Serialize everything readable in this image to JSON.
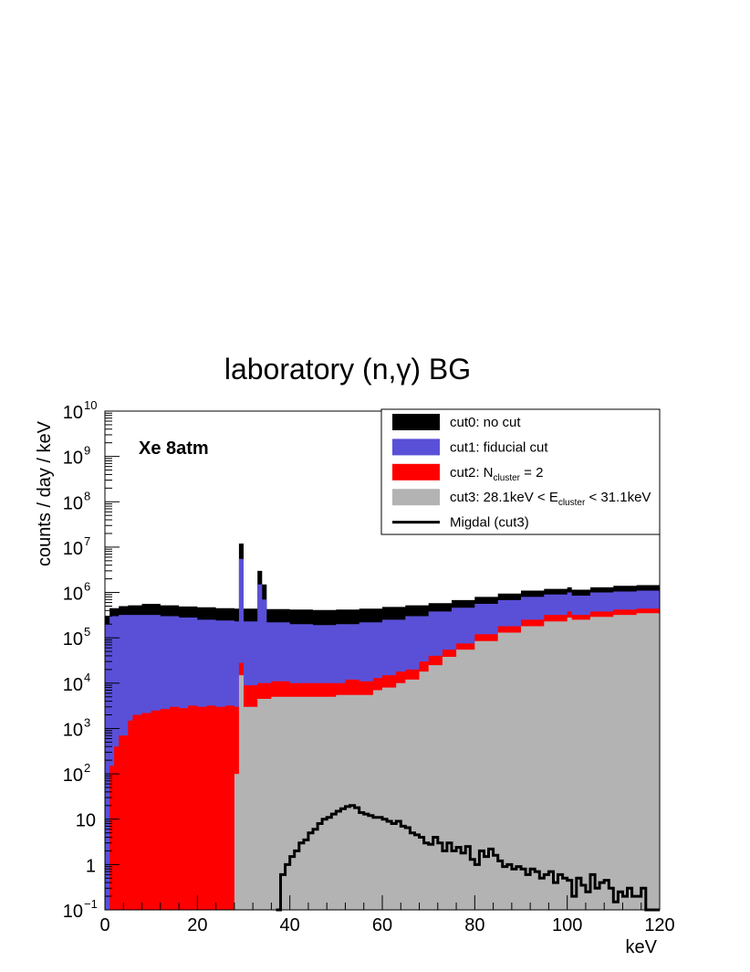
{
  "chart_data": {
    "type": "histogram",
    "title": "laboratory (n,γ) BG",
    "xlabel": "keV",
    "ylabel": "counts / day / keV",
    "xlim": [
      0,
      120
    ],
    "ylim": [
      0.1,
      10000000000.0
    ],
    "y_scale": "log",
    "grid": false,
    "x_ticks": [
      "0",
      "20",
      "40",
      "60",
      "80",
      "100",
      "120"
    ],
    "y_ticks": [
      {
        "value": 0.1,
        "base": "10",
        "exp": "−1"
      },
      {
        "value": 1,
        "base": "1",
        "exp": ""
      },
      {
        "value": 10,
        "base": "10",
        "exp": ""
      },
      {
        "value": 100,
        "base": "10",
        "exp": "2"
      },
      {
        "value": 1000,
        "base": "10",
        "exp": "3"
      },
      {
        "value": 10000,
        "base": "10",
        "exp": "4"
      },
      {
        "value": 100000,
        "base": "10",
        "exp": "5"
      },
      {
        "value": 1000000,
        "base": "10",
        "exp": "6"
      },
      {
        "value": 10000000,
        "base": "10",
        "exp": "7"
      },
      {
        "value": 100000000,
        "base": "10",
        "exp": "8"
      },
      {
        "value": 1000000000,
        "base": "10",
        "exp": "9"
      },
      {
        "value": 10000000000,
        "base": "10",
        "exp": "10"
      }
    ],
    "annotation": "Xe 8atm",
    "legend_position": "top-right",
    "legend": [
      {
        "key": "cut0",
        "label": "cut0: no cut",
        "color": "#000000",
        "style": "fill"
      },
      {
        "key": "cut1",
        "label": "cut1: fiducial cut",
        "color": "#5a50d8",
        "style": "fill"
      },
      {
        "key": "cut2",
        "label_main": "cut2: N",
        "label_sub": "cluster",
        "label_tail": " = 2",
        "color": "#ff0000",
        "style": "fill"
      },
      {
        "key": "cut3",
        "label_main": "cut3: 28.1keV < E",
        "label_sub": "cluster",
        "label_tail": " < 31.1keV",
        "color": "#b3b3b3",
        "style": "fill"
      },
      {
        "key": "migdal",
        "label": "Migdal (cut3)",
        "color": "#000000",
        "style": "line"
      }
    ],
    "series": [
      {
        "name": "cut0: no cut",
        "color": "#000000",
        "points": [
          [
            0,
            300000
          ],
          [
            1,
            450000
          ],
          [
            3,
            500000
          ],
          [
            5,
            520000
          ],
          [
            8,
            560000
          ],
          [
            12,
            520000
          ],
          [
            16,
            490000
          ],
          [
            20,
            470000
          ],
          [
            24,
            450000
          ],
          [
            28,
            440000
          ],
          [
            29,
            12000000
          ],
          [
            30,
            440000
          ],
          [
            33,
            3000000
          ],
          [
            34,
            1500000
          ],
          [
            35,
            430000
          ],
          [
            40,
            420000
          ],
          [
            45,
            410000
          ],
          [
            50,
            420000
          ],
          [
            55,
            440000
          ],
          [
            60,
            480000
          ],
          [
            65,
            520000
          ],
          [
            70,
            580000
          ],
          [
            75,
            680000
          ],
          [
            80,
            800000
          ],
          [
            85,
            950000
          ],
          [
            90,
            1100000
          ],
          [
            95,
            1200000
          ],
          [
            100,
            1300000
          ],
          [
            101,
            1150000
          ],
          [
            105,
            1300000
          ],
          [
            110,
            1400000
          ],
          [
            115,
            1450000
          ],
          [
            120,
            1450000
          ]
        ]
      },
      {
        "name": "cut1: fiducial cut",
        "color": "#5a50d8",
        "points": [
          [
            0,
            200000
          ],
          [
            1,
            300000
          ],
          [
            3,
            320000
          ],
          [
            5,
            320000
          ],
          [
            8,
            320000
          ],
          [
            12,
            300000
          ],
          [
            16,
            280000
          ],
          [
            20,
            250000
          ],
          [
            24,
            240000
          ],
          [
            28,
            230000
          ],
          [
            29,
            5500000
          ],
          [
            30,
            230000
          ],
          [
            33,
            1500000
          ],
          [
            34,
            700000
          ],
          [
            35,
            220000
          ],
          [
            40,
            200000
          ],
          [
            45,
            190000
          ],
          [
            50,
            200000
          ],
          [
            55,
            220000
          ],
          [
            60,
            250000
          ],
          [
            65,
            300000
          ],
          [
            70,
            380000
          ],
          [
            75,
            460000
          ],
          [
            80,
            560000
          ],
          [
            85,
            680000
          ],
          [
            90,
            800000
          ],
          [
            95,
            900000
          ],
          [
            100,
            1000000
          ],
          [
            101,
            850000
          ],
          [
            105,
            1000000
          ],
          [
            110,
            1050000
          ],
          [
            115,
            1100000
          ],
          [
            120,
            1100000
          ]
        ]
      },
      {
        "name": "cut2: N = 2",
        "color": "#ff0000",
        "points": [
          [
            1,
            150
          ],
          [
            2,
            400
          ],
          [
            3,
            700
          ],
          [
            5,
            1500
          ],
          [
            6,
            2000
          ],
          [
            8,
            2200
          ],
          [
            10,
            2500
          ],
          [
            12,
            2700
          ],
          [
            14,
            3000
          ],
          [
            16,
            2800
          ],
          [
            18,
            3200
          ],
          [
            20,
            3000
          ],
          [
            22,
            3200
          ],
          [
            24,
            3000
          ],
          [
            26,
            3200
          ],
          [
            28,
            3000
          ],
          [
            29,
            28000
          ],
          [
            30,
            9000
          ],
          [
            33,
            10000
          ],
          [
            36,
            11000
          ],
          [
            40,
            10000
          ],
          [
            45,
            10000
          ],
          [
            50,
            10000
          ],
          [
            52,
            12000
          ],
          [
            55,
            11000
          ],
          [
            58,
            13000
          ],
          [
            60,
            15000
          ],
          [
            63,
            18000
          ],
          [
            65,
            20000
          ],
          [
            68,
            30000
          ],
          [
            70,
            40000
          ],
          [
            73,
            55000
          ],
          [
            76,
            75000
          ],
          [
            80,
            120000
          ],
          [
            85,
            180000
          ],
          [
            90,
            250000
          ],
          [
            95,
            320000
          ],
          [
            100,
            380000
          ],
          [
            101,
            320000
          ],
          [
            105,
            380000
          ],
          [
            110,
            420000
          ],
          [
            115,
            440000
          ],
          [
            120,
            450000
          ]
        ]
      },
      {
        "name": "cut3: 28.1keV < E < 31.1keV",
        "color": "#b3b3b3",
        "points": [
          [
            28,
            100
          ],
          [
            29,
            15000
          ],
          [
            30,
            3000
          ],
          [
            33,
            4500
          ],
          [
            36,
            5000
          ],
          [
            40,
            5000
          ],
          [
            45,
            5000
          ],
          [
            50,
            5500
          ],
          [
            55,
            5500
          ],
          [
            58,
            7000
          ],
          [
            60,
            8000
          ],
          [
            63,
            10000
          ],
          [
            65,
            12000
          ],
          [
            68,
            18000
          ],
          [
            70,
            25000
          ],
          [
            73,
            38000
          ],
          [
            76,
            55000
          ],
          [
            80,
            85000
          ],
          [
            85,
            130000
          ],
          [
            90,
            180000
          ],
          [
            95,
            230000
          ],
          [
            100,
            280000
          ],
          [
            101,
            250000
          ],
          [
            105,
            290000
          ],
          [
            110,
            320000
          ],
          [
            115,
            350000
          ],
          [
            120,
            360000
          ]
        ]
      },
      {
        "name": "Migdal (cut3)",
        "color": "#000000",
        "points": [
          [
            37,
            0.1
          ],
          [
            38,
            0.6
          ],
          [
            39,
            1
          ],
          [
            40,
            1.5
          ],
          [
            41,
            2
          ],
          [
            42,
            3
          ],
          [
            43,
            3.5
          ],
          [
            44,
            5
          ],
          [
            45,
            6
          ],
          [
            46,
            8
          ],
          [
            47,
            10
          ],
          [
            48,
            11
          ],
          [
            49,
            13
          ],
          [
            50,
            15
          ],
          [
            51,
            17
          ],
          [
            52,
            19
          ],
          [
            53,
            20
          ],
          [
            54,
            18
          ],
          [
            55,
            14
          ],
          [
            56,
            13
          ],
          [
            57,
            12
          ],
          [
            58,
            11
          ],
          [
            59,
            11
          ],
          [
            60,
            10
          ],
          [
            61,
            9
          ],
          [
            62,
            8
          ],
          [
            63,
            9
          ],
          [
            64,
            7
          ],
          [
            65,
            6.5
          ],
          [
            66,
            5
          ],
          [
            67,
            4.5
          ],
          [
            68,
            4
          ],
          [
            69,
            3
          ],
          [
            70,
            2.8
          ],
          [
            71,
            4
          ],
          [
            72,
            3
          ],
          [
            73,
            2
          ],
          [
            74,
            3
          ],
          [
            75,
            2
          ],
          [
            76,
            2.4
          ],
          [
            77,
            1.8
          ],
          [
            78,
            2.5
          ],
          [
            79,
            1.3
          ],
          [
            80,
            1
          ],
          [
            81,
            2
          ],
          [
            82,
            1.5
          ],
          [
            83,
            2.2
          ],
          [
            84,
            1.6
          ],
          [
            85,
            1.2
          ],
          [
            86,
            0.9
          ],
          [
            87,
            1
          ],
          [
            88,
            0.8
          ],
          [
            89,
            0.9
          ],
          [
            90,
            0.8
          ],
          [
            91,
            0.6
          ],
          [
            92,
            0.8
          ],
          [
            93,
            0.7
          ],
          [
            94,
            0.5
          ],
          [
            95,
            0.6
          ],
          [
            96,
            0.7
          ],
          [
            97,
            0.4
          ],
          [
            98,
            0.6
          ],
          [
            99,
            0.5
          ],
          [
            100,
            0.45
          ],
          [
            101,
            0.2
          ],
          [
            102,
            0.5
          ],
          [
            103,
            0.35
          ],
          [
            104,
            0.25
          ],
          [
            105,
            0.6
          ],
          [
            106,
            0.3
          ],
          [
            107,
            0.4
          ],
          [
            108,
            0.45
          ],
          [
            109,
            0.3
          ],
          [
            110,
            0.15
          ],
          [
            111,
            0.25
          ],
          [
            112,
            0.2
          ],
          [
            113,
            0.3
          ],
          [
            114,
            0.2
          ],
          [
            115,
            0.2
          ],
          [
            116,
            0.3
          ],
          [
            117,
            0.1
          ],
          [
            118,
            0.1
          ],
          [
            119,
            0.1
          ],
          [
            120,
            0.1
          ]
        ]
      }
    ]
  }
}
